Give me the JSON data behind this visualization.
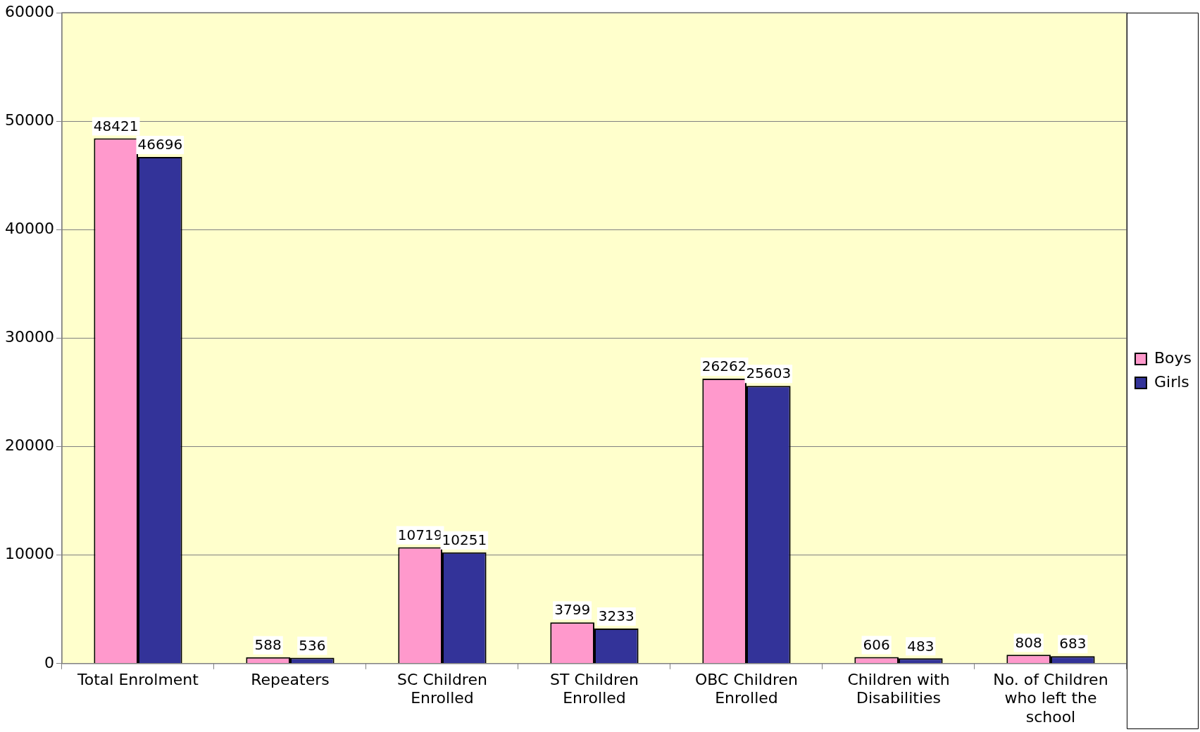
{
  "chart_data": {
    "type": "bar",
    "categories": [
      "Total Enrolment",
      "Repeaters",
      "SC Children Enrolled",
      "ST Children Enrolled",
      "OBC Children Enrolled",
      "Children with Disabilities",
      "No. of Children who left the school"
    ],
    "series": [
      {
        "name": "Boys",
        "color": "#ff99cc",
        "values": [
          48421,
          588,
          10719,
          3799,
          26262,
          606,
          808
        ]
      },
      {
        "name": "Girls",
        "color": "#333399",
        "values": [
          46696,
          536,
          10251,
          3233,
          25603,
          483,
          683
        ]
      }
    ],
    "ylim": [
      0,
      60000
    ],
    "yticks": [
      0,
      10000,
      20000,
      30000,
      40000,
      50000,
      60000
    ],
    "grid": "y",
    "legend": "right",
    "data_labels": true
  }
}
